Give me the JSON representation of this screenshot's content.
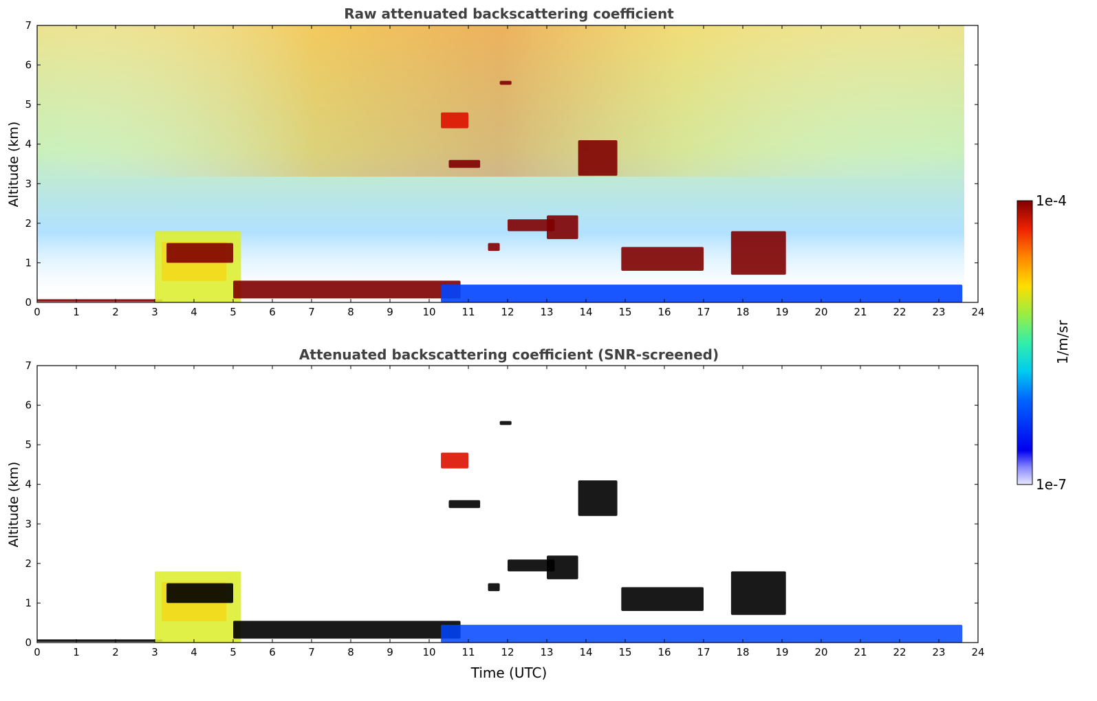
{
  "colors": {
    "colormap": [
      "#0000cc",
      "#0044ff",
      "#00aaff",
      "#22dddd",
      "#66ee66",
      "#ddee33",
      "#ffcc00",
      "#ff6600",
      "#dd1100",
      "#7f0000"
    ],
    "cloud_core": "#8b0000",
    "screened_core": "#000000",
    "axis": "#000000",
    "title": "#404040"
  },
  "chart_data": [
    {
      "type": "heatmap",
      "title": "Raw attenuated backscattering coefficient",
      "xlabel": "",
      "ylabel": "Altitude (km)",
      "xlim": [
        0,
        24
      ],
      "ylim": [
        0,
        7
      ],
      "xticks": [
        0,
        1,
        2,
        3,
        4,
        5,
        6,
        7,
        8,
        9,
        10,
        11,
        12,
        13,
        14,
        15,
        16,
        17,
        18,
        19,
        20,
        21,
        22,
        23,
        24
      ],
      "yticks": [
        0,
        1,
        2,
        3,
        4,
        5,
        6,
        7
      ],
      "colorscale_range": [
        "1e-7",
        "1e-4"
      ],
      "data_end_time": 23.6,
      "features": [
        {
          "name": "surface layer",
          "t": [
            0,
            3.2
          ],
          "alt": [
            0.02,
            0.08
          ],
          "level": 9
        },
        {
          "name": "low cloud layer 3-5 UTC",
          "t": [
            3.0,
            5.2
          ],
          "alt": [
            0.0,
            1.8
          ],
          "level": 5
        },
        {
          "name": "cloud 3.3-5 UTC",
          "t": [
            3.3,
            5.0
          ],
          "alt": [
            1.0,
            1.5
          ],
          "level": 9
        },
        {
          "name": "descending layer",
          "t": [
            5.0,
            10.8
          ],
          "alt": [
            0.1,
            0.55
          ],
          "level": 9
        },
        {
          "name": "boundary layer",
          "t": [
            10.3,
            23.6
          ],
          "alt": [
            0.0,
            0.45
          ],
          "level": 1
        },
        {
          "name": "cloud 10.3 UTC",
          "t": [
            10.3,
            11.0
          ],
          "alt": [
            4.4,
            4.8
          ],
          "level": 8
        },
        {
          "name": "cloud 10.5 UTC",
          "t": [
            10.5,
            11.3
          ],
          "alt": [
            3.4,
            3.6
          ],
          "level": 9
        },
        {
          "name": "cloud 11.5 UTC",
          "t": [
            11.5,
            11.8
          ],
          "alt": [
            1.3,
            1.5
          ],
          "level": 9
        },
        {
          "name": "cloud 12 UTC",
          "t": [
            11.8,
            12.1
          ],
          "alt": [
            5.5,
            5.6
          ],
          "level": 9
        },
        {
          "name": "cloud 12-13 UTC",
          "t": [
            12.0,
            13.2
          ],
          "alt": [
            1.8,
            2.1
          ],
          "level": 9
        },
        {
          "name": "cloud 13-13.8 UTC",
          "t": [
            13.0,
            13.8
          ],
          "alt": [
            1.6,
            2.2
          ],
          "level": 9
        },
        {
          "name": "cloud 13.8-14.8 UTC",
          "t": [
            13.8,
            14.8
          ],
          "alt": [
            3.2,
            4.1
          ],
          "level": 9
        },
        {
          "name": "cloud 15-17 UTC",
          "t": [
            14.9,
            17.0
          ],
          "alt": [
            0.8,
            1.4
          ],
          "level": 9
        },
        {
          "name": "cloud 17.7-19 UTC",
          "t": [
            17.7,
            19.1
          ],
          "alt": [
            0.7,
            1.8
          ],
          "level": 9
        }
      ]
    },
    {
      "type": "heatmap",
      "title": "Attenuated backscattering coefficient (SNR-screened)",
      "xlabel": "Time (UTC)",
      "ylabel": "Altitude (km)",
      "xlim": [
        0,
        24
      ],
      "ylim": [
        0,
        7
      ],
      "xticks": [
        0,
        1,
        2,
        3,
        4,
        5,
        6,
        7,
        8,
        9,
        10,
        11,
        12,
        13,
        14,
        15,
        16,
        17,
        18,
        19,
        20,
        21,
        22,
        23,
        24
      ],
      "yticks": [
        0,
        1,
        2,
        3,
        4,
        5,
        6,
        7
      ],
      "colorscale_range": [
        "1e-7",
        "1e-4"
      ],
      "data_end_time": 23.6,
      "screened": true
    }
  ],
  "colorbar": {
    "label": "1/m/sr",
    "max_label": "1e-4",
    "min_label": "1e-7"
  }
}
